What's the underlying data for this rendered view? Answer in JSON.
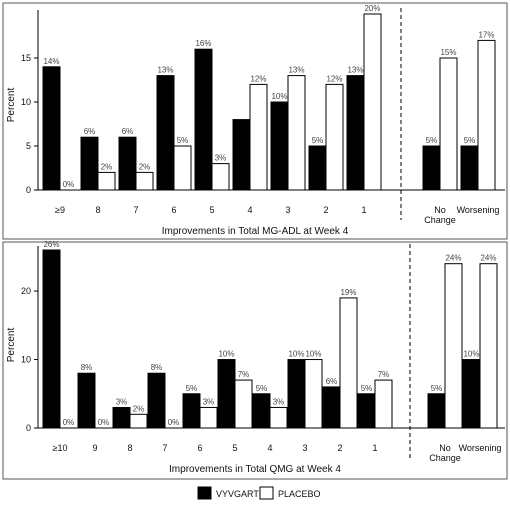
{
  "chart_data": [
    {
      "type": "bar",
      "xlabel": "Improvements in Total MG-ADL at Week 4",
      "ylabel": "Percent",
      "ylim": [
        0,
        20
      ],
      "yticks": [
        0,
        5,
        10,
        15
      ],
      "grid": false,
      "categories": [
        "≥9",
        "8",
        "7",
        "6",
        "5",
        "4",
        "3",
        "2",
        "1",
        "No Change",
        "Worsening"
      ],
      "series": [
        {
          "name": "VYVGART",
          "color": "#000000",
          "values": [
            14,
            6,
            6,
            13,
            16,
            8,
            10,
            5,
            13,
            5,
            5
          ],
          "labels": [
            "14%",
            "6%",
            "6%",
            "13%",
            "16%",
            "",
            "10%",
            "5%",
            "13%",
            "5%",
            "5%"
          ]
        },
        {
          "name": "PLACEBO",
          "color": "#ffffff",
          "values": [
            0,
            2,
            2,
            5,
            3,
            12,
            13,
            12,
            20,
            15,
            17
          ],
          "labels": [
            "0%",
            "2%",
            "2%",
            "5%",
            "3%",
            "12%",
            "13%",
            "12%",
            "20%",
            "15%",
            "17%"
          ]
        }
      ]
    },
    {
      "type": "bar",
      "xlabel": "Improvements in Total QMG at Week 4",
      "ylabel": "Percent",
      "ylim": [
        0,
        26
      ],
      "yticks": [
        0,
        10,
        20
      ],
      "grid": false,
      "categories": [
        "≥10",
        "9",
        "8",
        "7",
        "6",
        "5",
        "4",
        "3",
        "2",
        "1",
        "No Change",
        "Worsening"
      ],
      "series": [
        {
          "name": "VYVGART",
          "color": "#000000",
          "values": [
            26,
            8,
            3,
            8,
            5,
            10,
            5,
            10,
            6,
            5,
            5,
            10
          ],
          "labels": [
            "26%",
            "8%",
            "3%",
            "8%",
            "5%",
            "10%",
            "5%",
            "10%",
            "6%",
            "5%",
            "5%",
            "10%"
          ]
        },
        {
          "name": "PLACEBO",
          "color": "#ffffff",
          "values": [
            0,
            0,
            2,
            0,
            3,
            7,
            3,
            10,
            19,
            7,
            24,
            24
          ],
          "labels": [
            "0%",
            "0%",
            "2%",
            "0%",
            "3%",
            "7%",
            "3%",
            "10%",
            "19%",
            "7%",
            "24%",
            "24%"
          ]
        }
      ]
    }
  ],
  "legend": {
    "items": [
      {
        "label": "VYVGART",
        "color": "#000000"
      },
      {
        "label": "PLACEBO",
        "color": "#ffffff"
      }
    ]
  }
}
